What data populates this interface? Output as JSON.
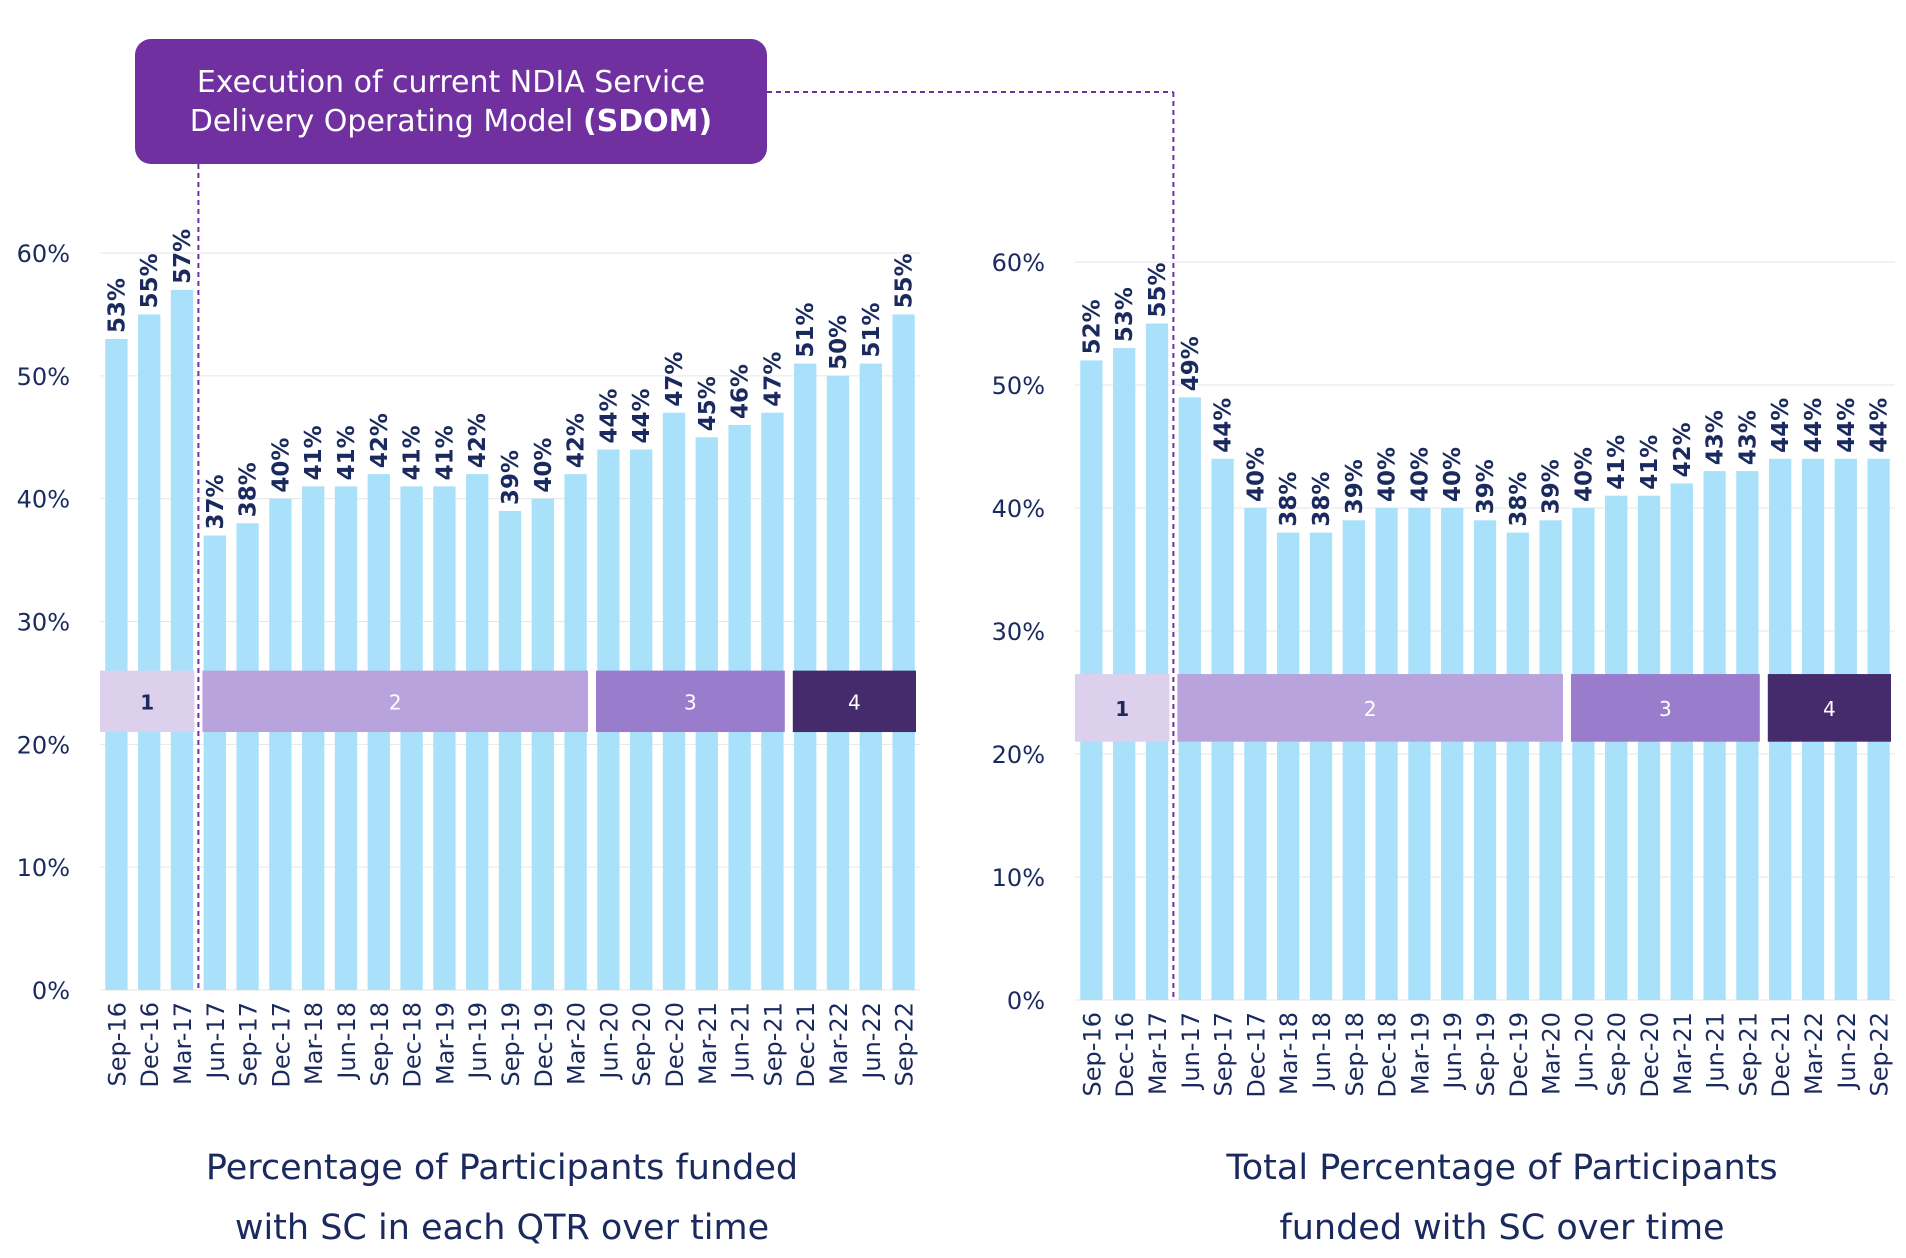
{
  "callout": {
    "line1": "Execution of current NDIA Service",
    "line2_prefix": "Delivery Operating Model",
    "line2_bold": "(SDOM)"
  },
  "colors": {
    "bar": "#a9e1fa",
    "axis_text": "#1a2a5e",
    "label_text": "#1a2a5e",
    "grid": "#e6e6e6",
    "callout_bg": "#7030a0",
    "divider": "#7030a0",
    "phase1": "#dcd0ec",
    "phase2": "#b9a3dc",
    "phase3": "#9a7ccd",
    "phase4": "#452a6c"
  },
  "chart_data": [
    {
      "type": "bar",
      "title": "Percentage of Participants funded with SC in each QTR over time",
      "title_lines": [
        "Percentage of Participants funded",
        "with SC in each QTR over time"
      ],
      "categories": [
        "Sep-16",
        "Dec-16",
        "Mar-17",
        "Jun-17",
        "Sep-17",
        "Dec-17",
        "Mar-18",
        "Jun-18",
        "Sep-18",
        "Dec-18",
        "Mar-19",
        "Jun-19",
        "Sep-19",
        "Dec-19",
        "Mar-20",
        "Jun-20",
        "Sep-20",
        "Dec-20",
        "Mar-21",
        "Jun-21",
        "Sep-21",
        "Dec-21",
        "Mar-22",
        "Jun-22",
        "Sep-22"
      ],
      "values": [
        53,
        55,
        57,
        37,
        38,
        40,
        41,
        41,
        42,
        41,
        41,
        42,
        39,
        40,
        42,
        44,
        44,
        47,
        45,
        46,
        47,
        51,
        50,
        51,
        55
      ],
      "data_labels": [
        "53%",
        "55%",
        "57%",
        "37%",
        "38%",
        "40%",
        "41%",
        "41%",
        "42%",
        "41%",
        "41%",
        "42%",
        "39%",
        "40%",
        "42%",
        "44%",
        "44%",
        "47%",
        "45%",
        "46%",
        "47%",
        "51%",
        "50%",
        "51%",
        "55%"
      ],
      "yticks": [
        "0%",
        "10%",
        "20%",
        "30%",
        "40%",
        "50%",
        "60%"
      ],
      "ylim": [
        0,
        60
      ],
      "grid": true,
      "phases": [
        {
          "label": "1",
          "start": 0,
          "end": 2
        },
        {
          "label": "2",
          "start": 3,
          "end": 14
        },
        {
          "label": "3",
          "start": 15,
          "end": 20
        },
        {
          "label": "4",
          "start": 21,
          "end": 24
        }
      ],
      "phase_band": [
        21,
        26
      ],
      "divider_after_index": 2
    },
    {
      "type": "bar",
      "title": "Total Percentage of Participants funded with SC over time",
      "title_lines": [
        "Total Percentage of Participants",
        "funded with SC over time"
      ],
      "categories": [
        "Sep-16",
        "Dec-16",
        "Mar-17",
        "Jun-17",
        "Sep-17",
        "Dec-17",
        "Mar-18",
        "Jun-18",
        "Sep-18",
        "Dec-18",
        "Mar-19",
        "Jun-19",
        "Sep-19",
        "Dec-19",
        "Mar-20",
        "Jun-20",
        "Sep-20",
        "Dec-20",
        "Mar-21",
        "Jun-21",
        "Sep-21",
        "Dec-21",
        "Mar-22",
        "Jun-22",
        "Sep-22"
      ],
      "values": [
        52,
        53,
        55,
        49,
        44,
        40,
        38,
        38,
        39,
        40,
        40,
        40,
        39,
        38,
        39,
        40,
        41,
        41,
        42,
        43,
        43,
        44,
        44,
        44,
        44
      ],
      "data_labels": [
        "52%",
        "53%",
        "55%",
        "49%",
        "44%",
        "40%",
        "38%",
        "38%",
        "39%",
        "40%",
        "40%",
        "40%",
        "39%",
        "38%",
        "39%",
        "40%",
        "41%",
        "41%",
        "42%",
        "43%",
        "43%",
        "44%",
        "44%",
        "44%",
        "44%"
      ],
      "yticks": [
        "0%",
        "10%",
        "20%",
        "30%",
        "40%",
        "50%",
        "60%"
      ],
      "ylim": [
        0,
        60
      ],
      "grid": true,
      "phases": [
        {
          "label": "1",
          "start": 0,
          "end": 2
        },
        {
          "label": "2",
          "start": 3,
          "end": 14
        },
        {
          "label": "3",
          "start": 15,
          "end": 20
        },
        {
          "label": "4",
          "start": 21,
          "end": 24
        }
      ],
      "phase_band": [
        21,
        26.5
      ],
      "divider_after_index": 2
    }
  ]
}
